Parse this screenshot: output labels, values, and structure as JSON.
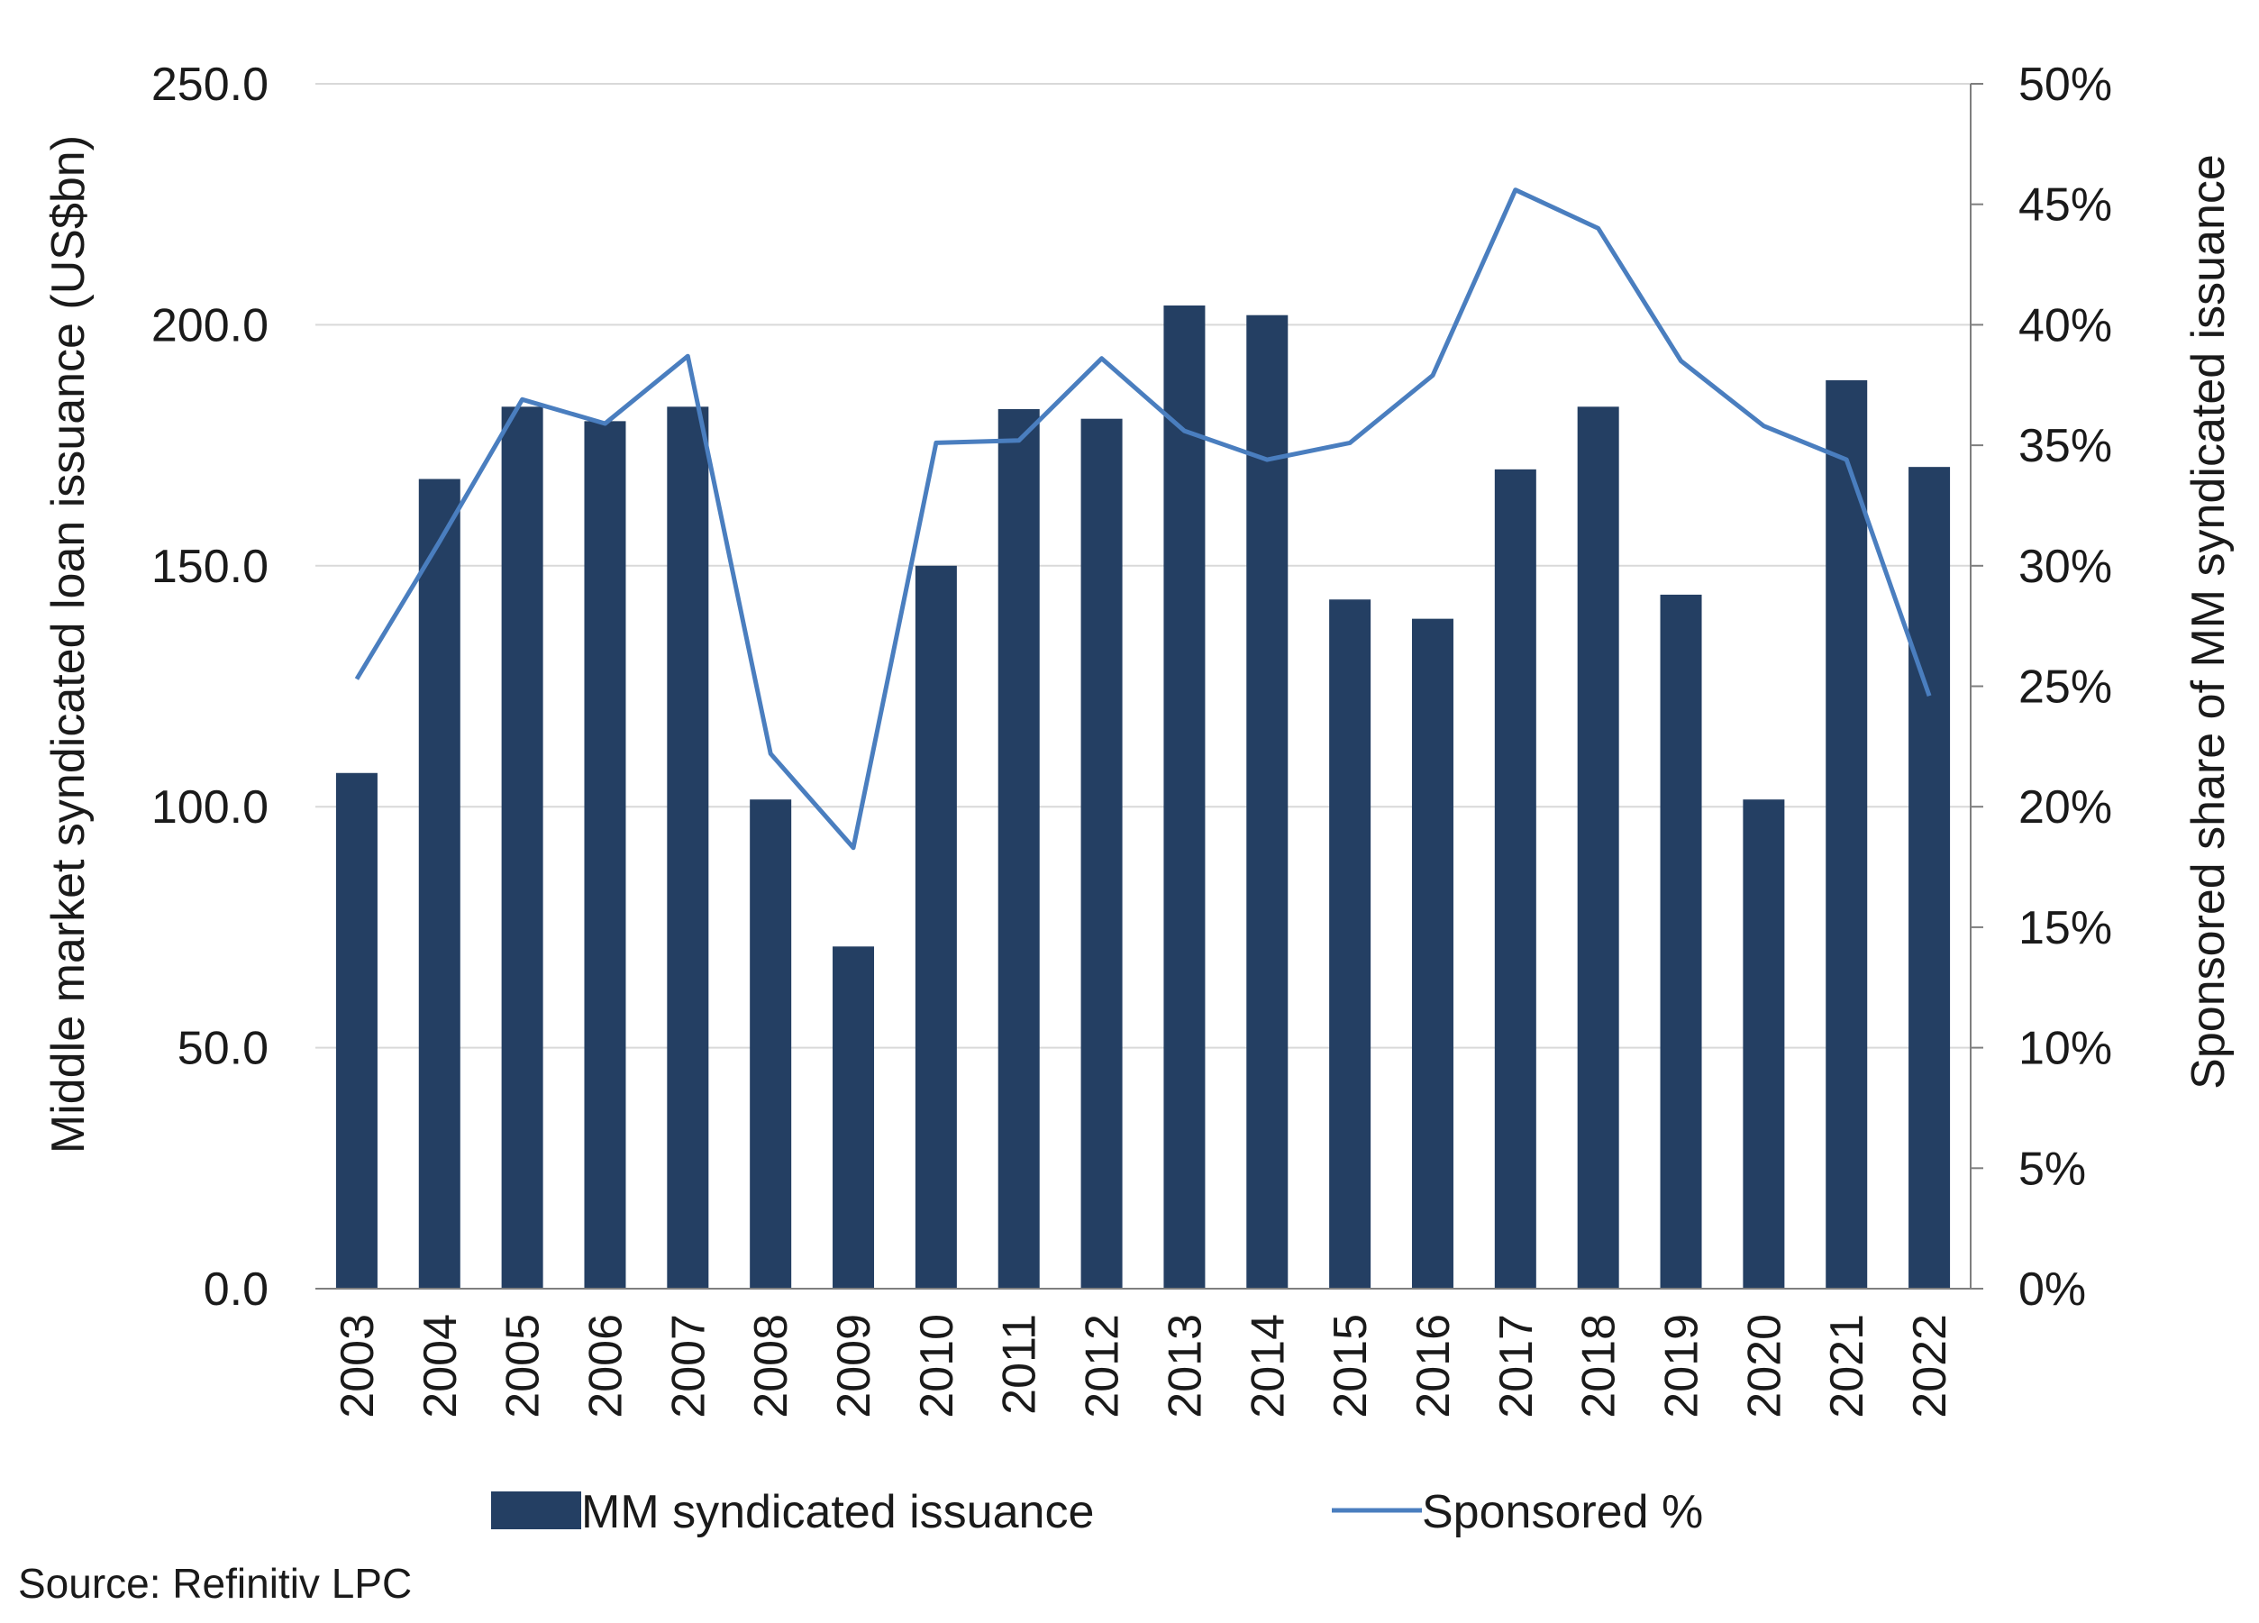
{
  "chart_data": {
    "type": "bar",
    "categories": [
      "2003",
      "2004",
      "2005",
      "2006",
      "2007",
      "2008",
      "2009",
      "2010",
      "2011",
      "2012",
      "2013",
      "2014",
      "2015",
      "2016",
      "2017",
      "2018",
      "2019",
      "2020",
      "2021",
      "2022"
    ],
    "series": [
      {
        "name": "MM syndicated issuance",
        "type": "bar",
        "axis": "left",
        "color": "#243f63",
        "values": [
          107,
          168,
          183,
          180,
          183,
          101.5,
          71,
          150,
          182.5,
          180.5,
          204,
          202,
          143,
          139,
          170,
          183,
          144,
          101.5,
          188.5,
          170.5
        ]
      },
      {
        "name": "Sponsored %",
        "type": "line",
        "axis": "right",
        "color": "#4a7ebf",
        "values": [
          25.3,
          31.0,
          36.9,
          35.9,
          38.7,
          22.2,
          18.3,
          35.1,
          35.2,
          38.6,
          35.6,
          34.4,
          35.1,
          37.9,
          45.6,
          44.0,
          38.5,
          35.8,
          34.4,
          24.6
        ]
      }
    ],
    "ylabel": "Middle market syndicated loan issuance (US$bn)",
    "y2label": "Sponsored share of MM syndicated issuance",
    "ylim": [
      0,
      250
    ],
    "y2lim": [
      0,
      50
    ],
    "yticks": [
      "0.0",
      "50.0",
      "100.0",
      "150.0",
      "200.0",
      "250.0"
    ],
    "y2ticks": [
      "0%",
      "5%",
      "10%",
      "15%",
      "20%",
      "25%",
      "30%",
      "35%",
      "40%",
      "45%",
      "50%"
    ],
    "grid": true,
    "legend_position": "bottom"
  },
  "source": "Source: Refinitiv LPC"
}
